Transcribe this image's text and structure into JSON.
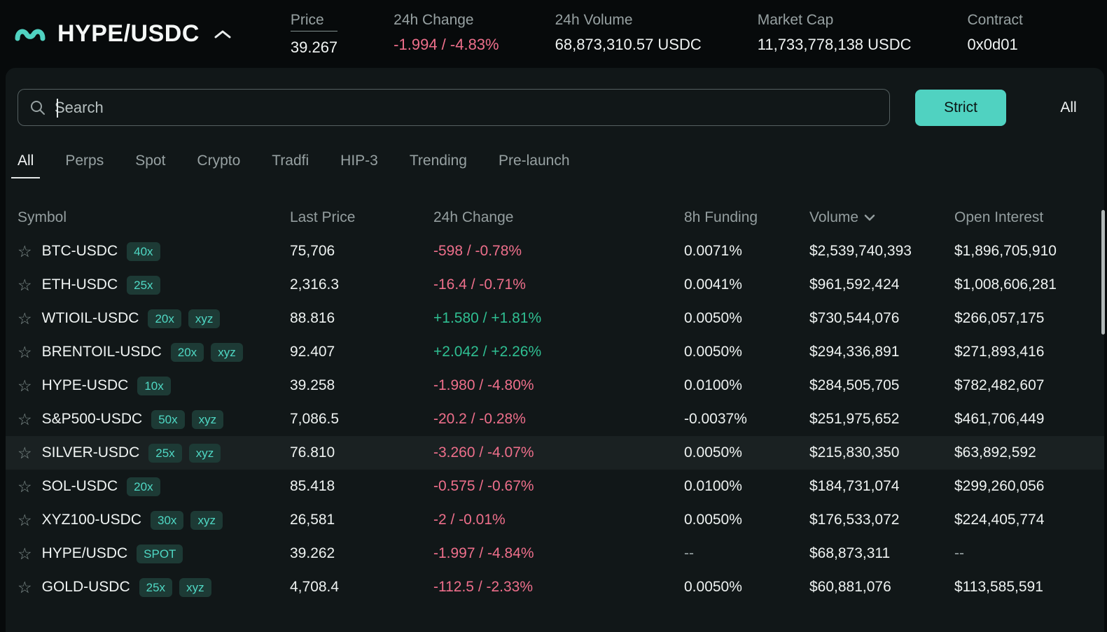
{
  "header": {
    "pair": "HYPE/USDC",
    "stats": [
      {
        "label": "Price",
        "value": "39.267"
      },
      {
        "label": "24h Change",
        "value": "-1.994 / -4.83%"
      },
      {
        "label": "24h Volume",
        "value": "68,873,310.57 USDC"
      },
      {
        "label": "Market Cap",
        "value": "11,733,778,138 USDC"
      },
      {
        "label": "Contract",
        "value": "0x0d01"
      }
    ]
  },
  "search": {
    "placeholder": "Search"
  },
  "filters": {
    "strict": "Strict",
    "all": "All"
  },
  "tabs": [
    "All",
    "Perps",
    "Spot",
    "Crypto",
    "Tradfi",
    "HIP-3",
    "Trending",
    "Pre-launch"
  ],
  "active_tab": "All",
  "table": {
    "columns": [
      "Symbol",
      "Last Price",
      "24h Change",
      "8h Funding",
      "Volume",
      "Open Interest"
    ],
    "sorted_column": "Volume",
    "sort_direction": "desc",
    "rows": [
      {
        "symbol": "BTC-USDC",
        "badges": [
          "40x"
        ],
        "last": "75,706",
        "change": "-598 / -0.78%",
        "dir": "down",
        "funding": "0.0071%",
        "volume": "$2,539,740,393",
        "oi": "$1,896,705,910"
      },
      {
        "symbol": "ETH-USDC",
        "badges": [
          "25x"
        ],
        "last": "2,316.3",
        "change": "-16.4 / -0.71%",
        "dir": "down",
        "funding": "0.0041%",
        "volume": "$961,592,424",
        "oi": "$1,008,606,281"
      },
      {
        "symbol": "WTIOIL-USDC",
        "badges": [
          "20x",
          "xyz"
        ],
        "last": "88.816",
        "change": "+1.580 / +1.81%",
        "dir": "up",
        "funding": "0.0050%",
        "volume": "$730,544,076",
        "oi": "$266,057,175"
      },
      {
        "symbol": "BRENTOIL-USDC",
        "badges": [
          "20x",
          "xyz"
        ],
        "last": "92.407",
        "change": "+2.042 / +2.26%",
        "dir": "up",
        "funding": "0.0050%",
        "volume": "$294,336,891",
        "oi": "$271,893,416"
      },
      {
        "symbol": "HYPE-USDC",
        "badges": [
          "10x"
        ],
        "last": "39.258",
        "change": "-1.980 / -4.80%",
        "dir": "down",
        "funding": "0.0100%",
        "volume": "$284,505,705",
        "oi": "$782,482,607"
      },
      {
        "symbol": "S&P500-USDC",
        "badges": [
          "50x",
          "xyz"
        ],
        "last": "7,086.5",
        "change": "-20.2 / -0.28%",
        "dir": "down",
        "funding": "-0.0037%",
        "volume": "$251,975,652",
        "oi": "$461,706,449"
      },
      {
        "symbol": "SILVER-USDC",
        "badges": [
          "25x",
          "xyz"
        ],
        "last": "76.810",
        "change": "-3.260 / -4.07%",
        "dir": "down",
        "funding": "0.0050%",
        "volume": "$215,830,350",
        "oi": "$63,892,592",
        "highlight": true
      },
      {
        "symbol": "SOL-USDC",
        "badges": [
          "20x"
        ],
        "last": "85.418",
        "change": "-0.575 / -0.67%",
        "dir": "down",
        "funding": "0.0100%",
        "volume": "$184,731,074",
        "oi": "$299,260,056"
      },
      {
        "symbol": "XYZ100-USDC",
        "badges": [
          "30x",
          "xyz"
        ],
        "last": "26,581",
        "change": "-2 / -0.01%",
        "dir": "down",
        "funding": "0.0050%",
        "volume": "$176,533,072",
        "oi": "$224,405,774"
      },
      {
        "symbol": "HYPE/USDC",
        "badges": [
          "SPOT"
        ],
        "last": "39.262",
        "change": "-1.997 / -4.84%",
        "dir": "down",
        "funding": "--",
        "volume": "$68,873,311",
        "oi": "--"
      },
      {
        "symbol": "GOLD-USDC",
        "badges": [
          "25x",
          "xyz"
        ],
        "last": "4,708.4",
        "change": "-112.5 / -2.33%",
        "dir": "down",
        "funding": "0.0050%",
        "volume": "$60,881,076",
        "oi": "$113,585,591"
      }
    ]
  },
  "colors": {
    "accent": "#50d2c1",
    "negative": "#ee6f8b",
    "positive": "#2fbf92",
    "badge_bg": "#1d3a35",
    "badge_fg": "#4fd8c4"
  }
}
